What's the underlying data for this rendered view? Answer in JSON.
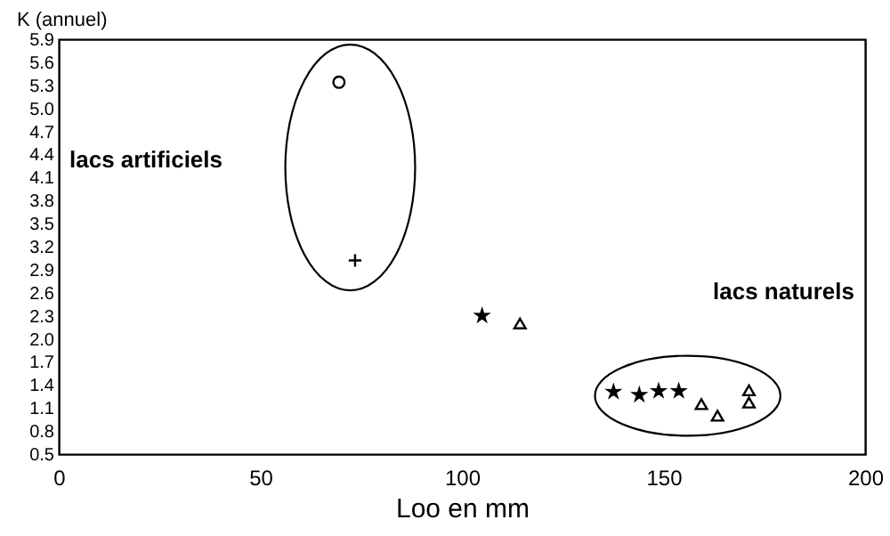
{
  "chart_data": {
    "type": "scatter",
    "xlabel": "Loo en mm",
    "ylabel": "K (annuel)",
    "xlim": [
      0,
      200
    ],
    "xticks": [
      0,
      50,
      100,
      150,
      200
    ],
    "ylim": [
      0.5,
      5.9
    ],
    "yticks": [
      0.5,
      0.8,
      1.1,
      1.4,
      1.7,
      {
        "value": 2,
        "label": "2.0"
      },
      2.3,
      2.6,
      2.9,
      3.2,
      3.5,
      3.8,
      4.1,
      4.4,
      4.7,
      {
        "value": 5,
        "label": "5.0"
      },
      5.3,
      5.6,
      5.9
    ],
    "grid": false,
    "series": [
      {
        "color": "#000000",
        "marker": "circle",
        "x": [
          69.5
        ],
        "values": [
          5.34
        ]
      },
      {
        "color": "#000000",
        "marker": "cross",
        "x": [
          73.5
        ],
        "values": [
          3.02
        ]
      },
      {
        "color": "#000000",
        "marker": "star",
        "x": [
          105,
          137.6,
          144,
          148.8,
          153.8
        ],
        "values": [
          2.3,
          1.31,
          1.27,
          1.32,
          1.32
        ]
      },
      {
        "color": "#000000",
        "marker": "triangle",
        "x": [
          114.4,
          159.4,
          163.4,
          171.2,
          171.2
        ],
        "values": [
          2.2,
          1.15,
          1.0,
          1.33,
          1.17
        ]
      }
    ],
    "annotations": [
      "lacs artificiels",
      "lacs naturels"
    ]
  }
}
